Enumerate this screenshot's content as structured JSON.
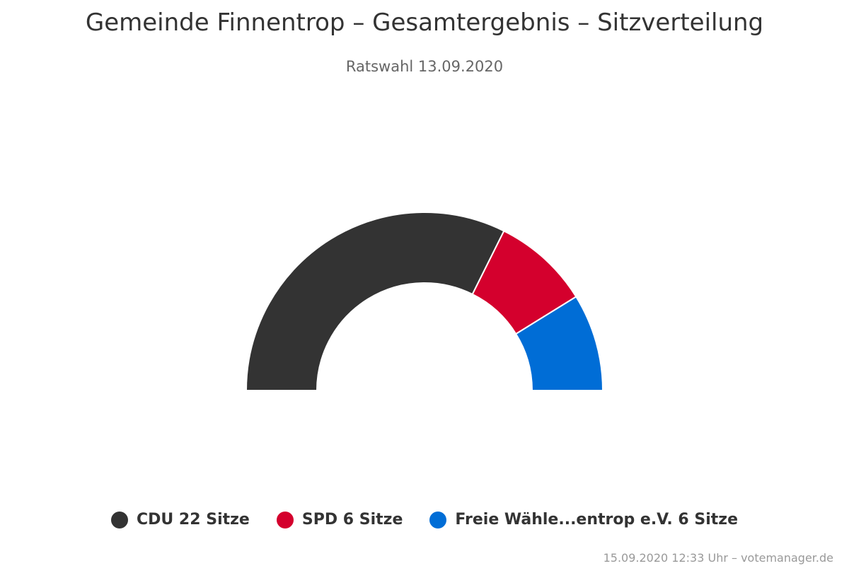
{
  "title": "Gemeinde Finnentrop – Gesamtergebnis – Sitzverteilung",
  "subtitle": "Ratswahl 13.09.2020",
  "credits": "15.09.2020 12:33 Uhr – votemanager.de",
  "seat_unit": "Sitze",
  "chart_data": {
    "type": "pie",
    "variant": "semicircle-donut",
    "title": "Gemeinde Finnentrop – Gesamtergebnis – Sitzverteilung",
    "subtitle": "Ratswahl 13.09.2020",
    "legend_placement": "bottom",
    "series": [
      {
        "name": "CDU",
        "value": 22,
        "color": "#333333"
      },
      {
        "name": "SPD",
        "value": 6,
        "color": "#d4002d"
      },
      {
        "name": "Freie Wähle...entrop e.V.",
        "value": 6,
        "color": "#006dd6"
      }
    ]
  }
}
